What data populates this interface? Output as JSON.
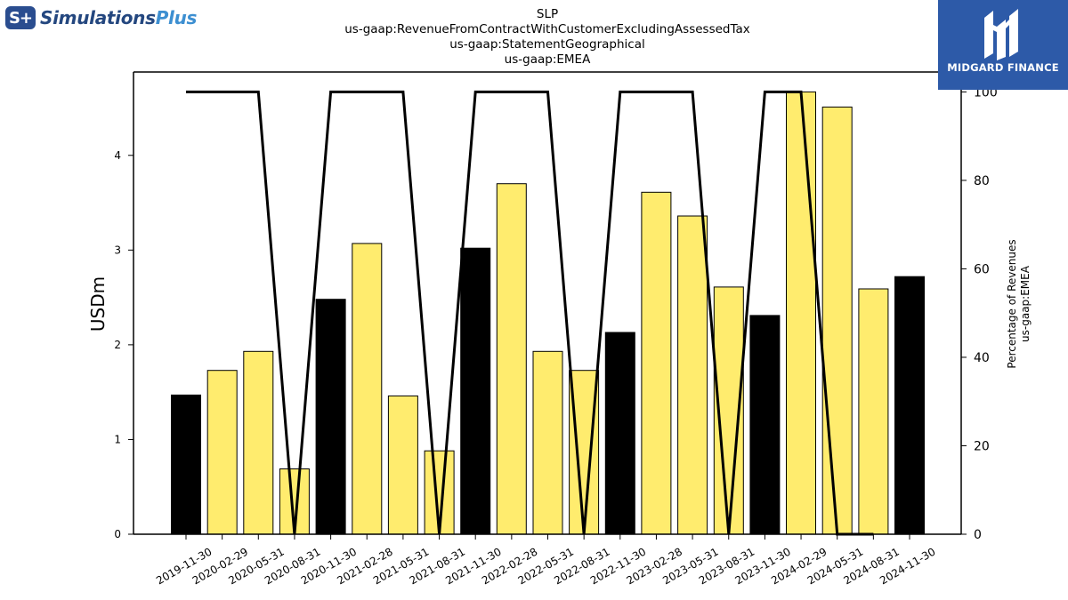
{
  "brand_left": {
    "badge": "S+",
    "name_main": "Simulations",
    "name_accent": "Plus"
  },
  "brand_right": {
    "name": "MIDGARD FINANCE",
    "icon": "midgard-logo-icon"
  },
  "chart_data": {
    "type": "bar",
    "title_lines": [
      "SLP",
      "us-gaap:RevenueFromContractWithCustomerExcludingAssessedTax",
      "us-gaap:StatementGeographical",
      "us-gaap:EMEA"
    ],
    "ylabel": "USDm",
    "y2label_lines": [
      "Percentage of Revenues",
      "us-gaap:EMEA"
    ],
    "categories": [
      "2019-11-30",
      "2020-02-29",
      "2020-05-31",
      "2020-08-31",
      "2020-11-30",
      "2021-02-28",
      "2021-05-31",
      "2021-08-31",
      "2021-11-30",
      "2022-02-28",
      "2022-05-31",
      "2022-08-31",
      "2022-11-30",
      "2023-02-28",
      "2023-05-31",
      "2023-08-31",
      "2023-11-30",
      "2024-02-29",
      "2024-05-31",
      "2024-08-31",
      "2024-11-30"
    ],
    "series": [
      {
        "type": "bar",
        "axis": "left",
        "values": [
          1.47,
          1.73,
          1.93,
          0.69,
          2.48,
          3.07,
          1.46,
          0.88,
          3.02,
          3.7,
          1.93,
          1.73,
          2.13,
          3.61,
          3.36,
          2.61,
          2.31,
          4.67,
          4.51,
          2.59,
          2.72
        ],
        "colors": [
          "#000000",
          "#ffec6e",
          "#ffec6e",
          "#ffec6e",
          "#000000",
          "#ffec6e",
          "#ffec6e",
          "#ffec6e",
          "#000000",
          "#ffec6e",
          "#ffec6e",
          "#ffec6e",
          "#000000",
          "#ffec6e",
          "#ffec6e",
          "#ffec6e",
          "#000000",
          "#ffec6e",
          "#ffec6e",
          "#ffec6e",
          "#000000"
        ]
      },
      {
        "type": "line",
        "axis": "right",
        "color": "#000000",
        "values": [
          100,
          100,
          100,
          0,
          100,
          100,
          100,
          0,
          100,
          100,
          100,
          0,
          100,
          100,
          100,
          0,
          100,
          100,
          0,
          0,
          null
        ]
      }
    ],
    "ylim": [
      0,
      4.88
    ],
    "y2lim": [
      0,
      104.5
    ],
    "yticks": [
      0,
      1,
      2,
      3,
      4
    ],
    "y2ticks": [
      0,
      20,
      40,
      60,
      80,
      100
    ],
    "grid": false,
    "legend": "none"
  }
}
